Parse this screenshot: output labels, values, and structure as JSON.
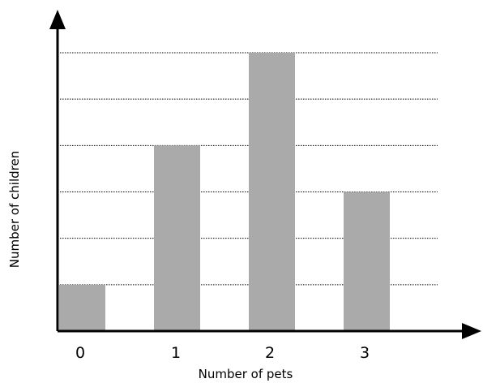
{
  "chart_data": {
    "type": "bar",
    "categories": [
      "0",
      "1",
      "2",
      "3"
    ],
    "values": [
      1,
      4,
      6,
      3
    ],
    "title": "",
    "xlabel": "Number of pets",
    "ylabel": "Number of children",
    "ylim": [
      0,
      6
    ],
    "grid": true,
    "bar_color": "#aaaaaa",
    "axis_color": "#000000"
  }
}
